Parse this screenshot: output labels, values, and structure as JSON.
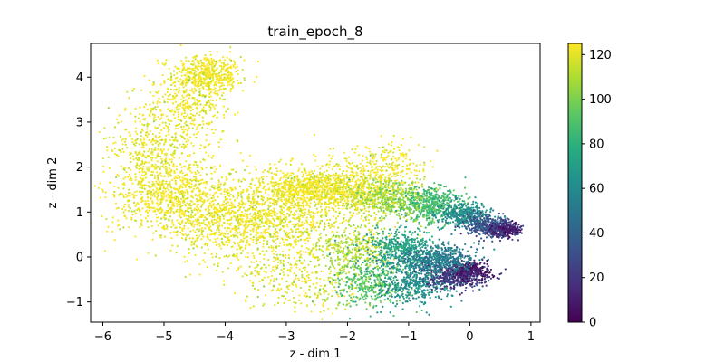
{
  "chart_data": {
    "type": "scatter",
    "title": "train_epoch_8",
    "xlabel": "z - dim 1",
    "ylabel": "z - dim 2",
    "xlim": [
      -6.2,
      1.15
    ],
    "ylim": [
      -1.45,
      4.75
    ],
    "xticks": [
      -6,
      -5,
      -4,
      -3,
      -2,
      -1,
      0,
      1
    ],
    "yticks": [
      -1,
      0,
      1,
      2,
      3,
      4
    ],
    "xtick_labels": [
      "−6",
      "−5",
      "−4",
      "−3",
      "−2",
      "−1",
      "0",
      "1"
    ],
    "ytick_labels": [
      "−1",
      "0",
      "1",
      "2",
      "3",
      "4"
    ],
    "grid": false,
    "colormap": "viridis",
    "colorbar": {
      "range": [
        0,
        125
      ],
      "ticks": [
        0,
        20,
        40,
        60,
        80,
        100,
        120
      ],
      "tick_labels": [
        "0",
        "20",
        "40",
        "60",
        "80",
        "100",
        "120"
      ]
    },
    "clusters": [
      {
        "x": -4.3,
        "y": 4.05,
        "sx": 0.28,
        "sy": 0.22,
        "c": 125,
        "n": 500
      },
      {
        "x": -4.6,
        "y": 3.3,
        "sx": 0.35,
        "sy": 0.45,
        "c": 125,
        "n": 350
      },
      {
        "x": -5.2,
        "y": 2.3,
        "sx": 0.35,
        "sy": 0.55,
        "c": 122,
        "n": 450
      },
      {
        "x": -4.8,
        "y": 1.3,
        "sx": 0.55,
        "sy": 0.45,
        "c": 124,
        "n": 700
      },
      {
        "x": -3.8,
        "y": 0.8,
        "sx": 0.6,
        "sy": 0.45,
        "c": 124,
        "n": 850
      },
      {
        "x": -2.9,
        "y": 0.9,
        "sx": 0.5,
        "sy": 0.55,
        "c": 123,
        "n": 600
      },
      {
        "x": -2.6,
        "y": 1.55,
        "sx": 0.4,
        "sy": 0.2,
        "c": 125,
        "n": 700
      },
      {
        "x": -2.7,
        "y": -0.6,
        "sx": 0.5,
        "sy": 0.3,
        "c": 118,
        "n": 250
      },
      {
        "x": -1.9,
        "y": 0.2,
        "sx": 0.35,
        "sy": 0.25,
        "c": 112,
        "n": 350
      },
      {
        "x": -1.6,
        "y": -0.6,
        "sx": 0.3,
        "sy": 0.25,
        "c": 92,
        "n": 350
      },
      {
        "x": -0.9,
        "y": -0.55,
        "sx": 0.3,
        "sy": 0.25,
        "c": 62,
        "n": 450
      },
      {
        "x": -0.2,
        "y": -0.4,
        "sx": 0.25,
        "sy": 0.15,
        "c": 22,
        "n": 500
      },
      {
        "x": 0.0,
        "y": -0.3,
        "sx": 0.15,
        "sy": 0.1,
        "c": 8,
        "n": 250
      },
      {
        "x": -1.1,
        "y": 0.2,
        "sx": 0.3,
        "sy": 0.2,
        "c": 72,
        "n": 450
      },
      {
        "x": -0.5,
        "y": -0.05,
        "sx": 0.3,
        "sy": 0.15,
        "c": 52,
        "n": 450
      },
      {
        "x": -1.8,
        "y": 1.4,
        "sx": 0.3,
        "sy": 0.25,
        "c": 120,
        "n": 400
      },
      {
        "x": -1.2,
        "y": 1.3,
        "sx": 0.3,
        "sy": 0.2,
        "c": 105,
        "n": 450
      },
      {
        "x": -0.6,
        "y": 1.15,
        "sx": 0.25,
        "sy": 0.2,
        "c": 86,
        "n": 450
      },
      {
        "x": -0.1,
        "y": 0.95,
        "sx": 0.2,
        "sy": 0.15,
        "c": 62,
        "n": 400
      },
      {
        "x": 0.3,
        "y": 0.7,
        "sx": 0.2,
        "sy": 0.12,
        "c": 32,
        "n": 400
      },
      {
        "x": 0.6,
        "y": 0.6,
        "sx": 0.12,
        "sy": 0.08,
        "c": 12,
        "n": 250
      },
      {
        "x": -1.4,
        "y": 2.0,
        "sx": 0.35,
        "sy": 0.25,
        "c": 124,
        "n": 250
      }
    ]
  }
}
